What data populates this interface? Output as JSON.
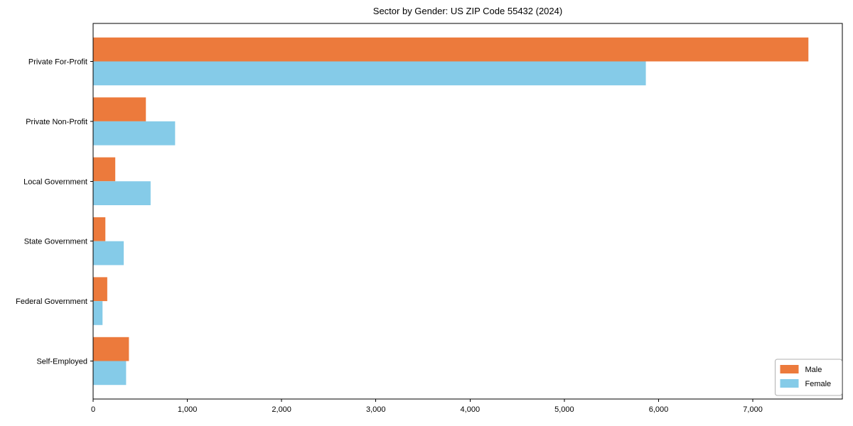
{
  "figure": {
    "title": "Sector by Gender: US ZIP Code 55432 (2024)"
  },
  "chart_data": {
    "type": "bar",
    "orientation": "horizontal",
    "title": "Sector by Gender: US ZIP Code 55432 (2024)",
    "categories": [
      "Private For-Profit",
      "Private Non-Profit",
      "Local Government",
      "State Government",
      "Federal Government",
      "Self-Employed"
    ],
    "series": [
      {
        "name": "Male",
        "color": "#ec7a3c",
        "values": [
          7590,
          560,
          235,
          130,
          150,
          380
        ]
      },
      {
        "name": "Female",
        "color": "#85cbe8",
        "values": [
          5865,
          870,
          610,
          325,
          100,
          350
        ]
      }
    ],
    "xlabel": "",
    "ylabel": "",
    "xlim": [
      0,
      7950
    ],
    "xticks": {
      "values": [
        0,
        1000,
        2000,
        3000,
        4000,
        5000,
        6000,
        7000
      ],
      "labels": [
        "0",
        "1,000",
        "2,000",
        "3,000",
        "4,000",
        "5,000",
        "6,000",
        "7,000"
      ]
    },
    "legend": {
      "position": "lower right",
      "entries": [
        "Male",
        "Female"
      ]
    },
    "grid": false,
    "colors": {
      "axis": "#000000",
      "text": "#000000",
      "legend_border": "#b0b0b0",
      "background": "#ffffff"
    }
  }
}
